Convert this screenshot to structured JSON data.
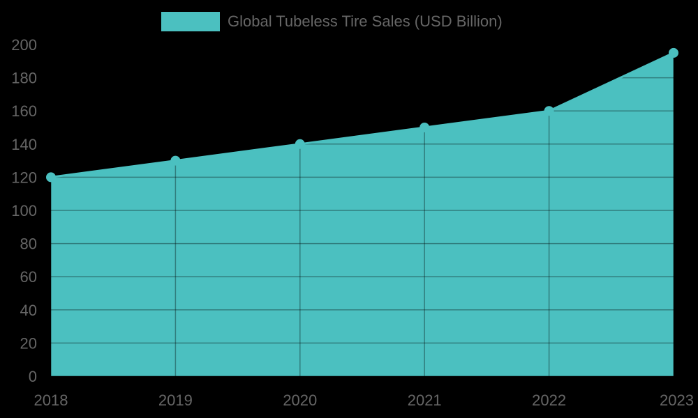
{
  "chart_data": {
    "type": "area",
    "title": "",
    "categories": [
      "2018",
      "2019",
      "2020",
      "2021",
      "2022",
      "2023"
    ],
    "series": [
      {
        "name": "Global Tubeless Tire Sales (USD Billion)",
        "values": [
          120,
          130,
          140,
          150,
          160,
          195
        ],
        "color": "#4bc0c0"
      }
    ],
    "xlabel": "",
    "ylabel": "",
    "ylim": [
      0,
      200
    ],
    "yticks": [
      0,
      20,
      40,
      60,
      80,
      100,
      120,
      140,
      160,
      180,
      200
    ],
    "grid": true,
    "legend_position": "top"
  },
  "legend": {
    "label": "Global Tubeless Tire Sales (USD Billion)",
    "color": "#4bc0c0"
  },
  "colors": {
    "background": "#000000",
    "fill": "#4bc0c0",
    "text": "#666666"
  }
}
